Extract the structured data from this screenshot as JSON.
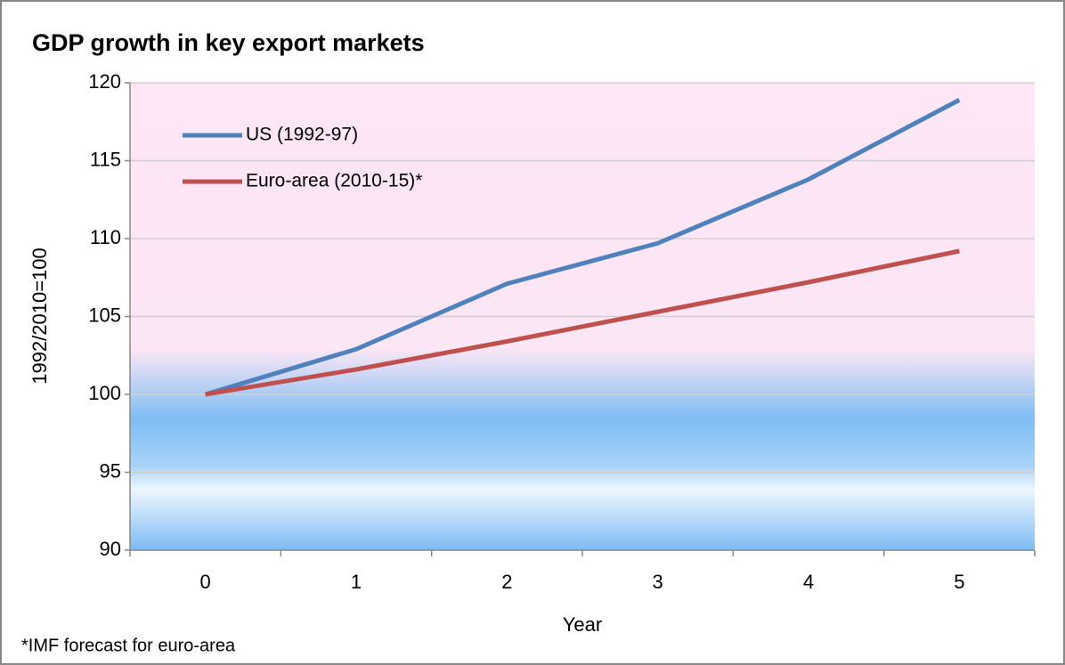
{
  "chart_data": {
    "type": "line",
    "title": "GDP growth in key export markets",
    "y_label": "1992/2010=100",
    "x_label": "Year",
    "footnote": "*IMF forecast for euro-area",
    "categories": [
      "0",
      "1",
      "2",
      "3",
      "4",
      "5"
    ],
    "series": [
      {
        "name": "US (1992-97)",
        "color": "#4f81bd",
        "values": [
          100,
          102.9,
          107.1,
          109.7,
          113.8,
          118.9
        ]
      },
      {
        "name": "Euro-area (2010-15)*",
        "color": "#c0504d",
        "values": [
          100,
          101.6,
          103.4,
          105.3,
          107.2,
          109.2
        ]
      }
    ],
    "ylim": [
      90,
      120
    ],
    "yticks": [
      90,
      95,
      100,
      105,
      110,
      115,
      120
    ],
    "grid": true,
    "legend": "top-left"
  }
}
